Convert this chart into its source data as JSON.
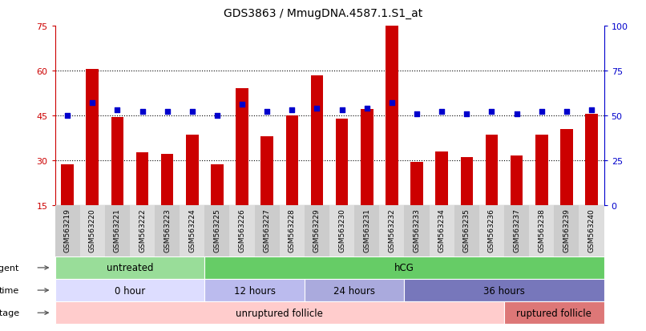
{
  "title": "GDS3863 / MmugDNA.4587.1.S1_at",
  "samples": [
    "GSM563219",
    "GSM563220",
    "GSM563221",
    "GSM563222",
    "GSM563223",
    "GSM563224",
    "GSM563225",
    "GSM563226",
    "GSM563227",
    "GSM563228",
    "GSM563229",
    "GSM563230",
    "GSM563231",
    "GSM563232",
    "GSM563233",
    "GSM563234",
    "GSM563235",
    "GSM563236",
    "GSM563237",
    "GSM563238",
    "GSM563239",
    "GSM563240"
  ],
  "counts": [
    28.5,
    60.5,
    44.5,
    32.5,
    32.0,
    38.5,
    28.5,
    54.0,
    38.0,
    45.0,
    58.5,
    44.0,
    47.0,
    75.0,
    29.5,
    33.0,
    31.0,
    38.5,
    31.5,
    38.5,
    40.5,
    45.5
  ],
  "percentiles": [
    50,
    57,
    53,
    52,
    52,
    52,
    50,
    56,
    52,
    53,
    54,
    53,
    54,
    57,
    51,
    52,
    51,
    52,
    51,
    52,
    52,
    53
  ],
  "bar_color": "#cc0000",
  "dot_color": "#0000cc",
  "ylim_left": [
    15,
    75
  ],
  "ylim_right": [
    0,
    100
  ],
  "yticks_left": [
    15,
    30,
    45,
    60,
    75
  ],
  "yticks_right": [
    0,
    25,
    50,
    75,
    100
  ],
  "agent_labels": [
    {
      "text": "untreated",
      "start": 0,
      "end": 6,
      "color": "#99dd99"
    },
    {
      "text": "hCG",
      "start": 6,
      "end": 22,
      "color": "#66cc66"
    }
  ],
  "time_labels": [
    {
      "text": "0 hour",
      "start": 0,
      "end": 6,
      "color": "#ddddff"
    },
    {
      "text": "12 hours",
      "start": 6,
      "end": 10,
      "color": "#bbbbee"
    },
    {
      "text": "24 hours",
      "start": 10,
      "end": 14,
      "color": "#aaaadd"
    },
    {
      "text": "36 hours",
      "start": 14,
      "end": 22,
      "color": "#7777bb"
    }
  ],
  "dev_labels": [
    {
      "text": "unruptured follicle",
      "start": 0,
      "end": 18,
      "color": "#ffcccc"
    },
    {
      "text": "ruptured follicle",
      "start": 18,
      "end": 22,
      "color": "#dd7777"
    }
  ],
  "legend_count_color": "#cc0000",
  "legend_dot_color": "#0000cc",
  "axis_left_color": "#cc0000",
  "axis_right_color": "#0000cc"
}
